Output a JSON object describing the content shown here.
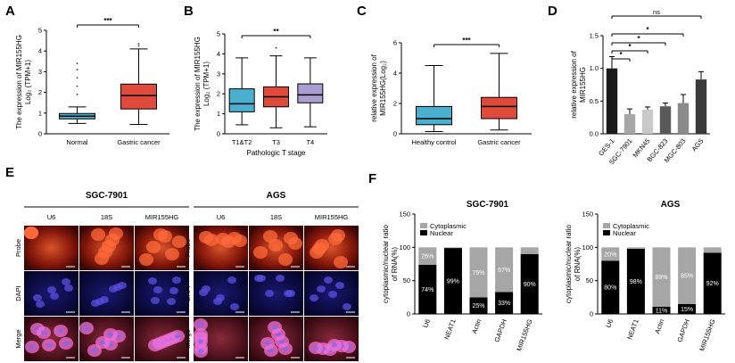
{
  "panels": {
    "A": "A",
    "B": "B",
    "C": "C",
    "D": "D",
    "E": "E",
    "F": "F"
  },
  "chart_data": [
    {
      "id": "A",
      "type": "box",
      "ylabel_line1": "The expression of MIR155HG",
      "ylabel_line2": "Log₂ (TPM+1)",
      "ylim": [
        0,
        5
      ],
      "yticks": [
        "0",
        "1",
        "2",
        "3",
        "4",
        "5"
      ],
      "categories": [
        "Normal",
        "Gastric cancer"
      ],
      "boxes": [
        {
          "min": 0.5,
          "q1": 0.72,
          "median": 0.85,
          "q3": 0.98,
          "max": 1.3,
          "outliers": [
            1.9,
            2.3,
            2.7,
            3.1,
            3.4
          ],
          "color": "#4bb0cf"
        },
        {
          "min": 0.45,
          "q1": 1.2,
          "median": 1.85,
          "q3": 2.4,
          "max": 4.1,
          "outliers": [
            4.25,
            4.35
          ],
          "color": "#e04a3b"
        }
      ],
      "significance": "***"
    },
    {
      "id": "B",
      "type": "box",
      "ylabel_line1": "The expression of MIR155HG",
      "ylabel_line2": "Log₂ (TPM+1)",
      "xlabel": "Pathologic T stage",
      "ylim": [
        0,
        5
      ],
      "yticks": [
        "0",
        "1",
        "2",
        "3",
        "4",
        "5"
      ],
      "categories": [
        "T1&T2",
        "T3",
        "T4"
      ],
      "boxes": [
        {
          "min": 0.45,
          "q1": 1.1,
          "median": 1.5,
          "q3": 2.25,
          "max": 3.8,
          "outliers": [],
          "color": "#4bb0cf"
        },
        {
          "min": 0.3,
          "q1": 1.35,
          "median": 1.85,
          "q3": 2.35,
          "max": 3.9,
          "outliers": [
            4.3
          ],
          "color": "#e04a3b"
        },
        {
          "min": 0.35,
          "q1": 1.55,
          "median": 1.95,
          "q3": 2.5,
          "max": 3.8,
          "outliers": [],
          "color": "#a99dd1"
        }
      ],
      "significance": "**"
    },
    {
      "id": "C",
      "type": "box",
      "ylabel_line1": "relative expression of",
      "ylabel_line2": "MIR155HG(Log₂)",
      "ylim": [
        0,
        6
      ],
      "yticks": [
        "0",
        "2",
        "4",
        "6"
      ],
      "categories": [
        "Healthy control",
        "Gastric cancer"
      ],
      "boxes": [
        {
          "min": 0.15,
          "q1": 0.6,
          "median": 1.0,
          "q3": 1.8,
          "max": 4.5,
          "outliers": [],
          "color": "#4bb0cf"
        },
        {
          "min": 0.25,
          "q1": 1.0,
          "median": 1.8,
          "q3": 2.4,
          "max": 5.3,
          "outliers": [],
          "color": "#e04a3b"
        }
      ],
      "significance": "***"
    },
    {
      "id": "D",
      "type": "bar",
      "ylabel_line1": "relative expression of",
      "ylabel_line2": "MIR155HG",
      "ylim": [
        0,
        1.5
      ],
      "yticks": [
        "0.0",
        "0.5",
        "1.0",
        "1.5"
      ],
      "categories": [
        "GES-1",
        "SGC-7901",
        "MKN45",
        "BGC-823",
        "MGC-803",
        "AGS"
      ],
      "values": [
        1.0,
        0.3,
        0.37,
        0.42,
        0.47,
        0.83
      ],
      "errors": [
        0.18,
        0.08,
        0.04,
        0.05,
        0.13,
        0.12
      ],
      "colors": [
        "#1a1a1a",
        "#a6a6a6",
        "#c9c9c9",
        "#595959",
        "#8a8a8a",
        "#3a3a3a"
      ],
      "comparisons": [
        {
          "to": 1,
          "label": "*"
        },
        {
          "to": 2,
          "label": "*"
        },
        {
          "to": 3,
          "label": "*"
        },
        {
          "to": 4,
          "label": "*"
        },
        {
          "to": 5,
          "label": "ns"
        }
      ]
    },
    {
      "id": "F1",
      "type": "stacked_bar",
      "title": "SGC-7901",
      "ylabel_line1": "cytoplasmic/nuclear ratio",
      "ylabel_line2": "of RNA(%)",
      "ylim": [
        0,
        150
      ],
      "yticks": [
        "0",
        "50",
        "100",
        "150"
      ],
      "legend": [
        "Cytoplasmic",
        "Nuclear"
      ],
      "categories": [
        "U6",
        "NEAT1",
        "Actin",
        "GAPDH",
        "MIR155HG"
      ],
      "nuclear": [
        74,
        99,
        25,
        33,
        90
      ],
      "cytoplasmic": [
        26,
        1,
        75,
        67,
        10
      ],
      "nuclear_labels": [
        "74%",
        "99%",
        "25%",
        "33%",
        "90%"
      ],
      "cytoplasmic_labels": [
        "26%",
        "",
        "75%",
        "67%",
        ""
      ]
    },
    {
      "id": "F2",
      "type": "stacked_bar",
      "title": "AGS",
      "ylabel_line1": "cytoplasmic/nuclear ratio",
      "ylabel_line2": "of RNA(%)",
      "ylim": [
        0,
        150
      ],
      "yticks": [
        "0",
        "50",
        "100",
        "150"
      ],
      "legend": [
        "Cytoplasmic",
        "Nuclear"
      ],
      "categories": [
        "U6",
        "NEAT1",
        "Actin",
        "GAPDH",
        "MIR155HG"
      ],
      "nuclear": [
        80,
        98,
        11,
        15,
        92
      ],
      "cytoplasmic": [
        20,
        2,
        89,
        85,
        8
      ],
      "nuclear_labels": [
        "80%",
        "98%",
        "11%",
        "15%",
        "92%"
      ],
      "cytoplasmic_labels": [
        "20%",
        "",
        "89%",
        "85%",
        ""
      ]
    }
  ],
  "panel_e": {
    "groups": [
      {
        "title": "SGC-7901",
        "cols": [
          "U6",
          "18S",
          "MIR155HG"
        ]
      },
      {
        "title": "AGS",
        "cols": [
          "U6",
          "18S",
          "MIR155HG"
        ]
      }
    ],
    "rows": [
      "Probe",
      "DAPI",
      "Merge"
    ]
  }
}
